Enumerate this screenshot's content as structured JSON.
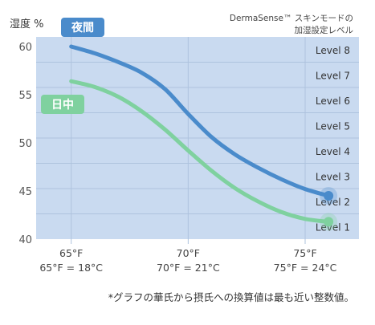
{
  "chart_data": {
    "type": "line",
    "ylabel": "湿度 %",
    "xlabel": "",
    "title": "DermaSense™ スキンモードの加湿設定レベル",
    "xlim": [
      63.5,
      77.3
    ],
    "ylim": [
      40,
      61
    ],
    "yticks": [
      40,
      45,
      50,
      55,
      60
    ],
    "xticks": [
      {
        "value": 65,
        "label": "65°F",
        "sublabel": "65°F = 18°C"
      },
      {
        "value": 70,
        "label": "70°F",
        "sublabel": "70°F = 21°C"
      },
      {
        "value": 75,
        "label": "75°F",
        "sublabel": "75°F = 24°C"
      }
    ],
    "levels": [
      "Level 8",
      "Level 7",
      "Level 6",
      "Level 5",
      "Level 4",
      "Level 3",
      "Level 2",
      "Level 1"
    ],
    "series": [
      {
        "name": "夜間",
        "color": "#4a8bcb",
        "x": [
          65,
          66,
          67,
          68,
          69,
          70,
          71,
          72,
          73,
          74,
          75,
          76
        ],
        "y": [
          60.0,
          59.3,
          58.4,
          57.3,
          55.6,
          53.0,
          50.6,
          48.8,
          47.4,
          46.2,
          45.2,
          44.5
        ]
      },
      {
        "name": "日中",
        "color": "#7fd19f",
        "x": [
          65,
          66,
          67,
          68,
          69,
          70,
          71,
          72,
          73,
          74,
          75,
          76
        ],
        "y": [
          56.4,
          55.8,
          54.8,
          53.3,
          51.4,
          49.2,
          47.1,
          45.3,
          43.9,
          42.8,
          42.1,
          41.8
        ]
      }
    ],
    "endpoint_x": 76,
    "grid": true,
    "colors": {
      "plot_bg": "#c9daf0",
      "grid": "#aec3de",
      "axis_text": "#555555"
    }
  },
  "footnote": "*グラフの華氏から摂氏への換算値は最も近い整数値。"
}
